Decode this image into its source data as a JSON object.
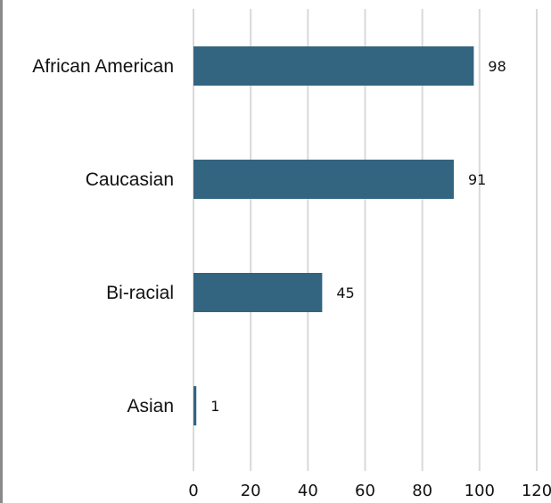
{
  "chart_data": {
    "type": "bar",
    "orientation": "horizontal",
    "categories": [
      "African American",
      "Caucasian",
      "Bi-racial",
      "Asian"
    ],
    "values": [
      98,
      91,
      45,
      1
    ],
    "data_labels": [
      "98",
      "91",
      "45",
      "1"
    ],
    "xlim": [
      0,
      120
    ],
    "x_ticks": [
      0,
      20,
      40,
      60,
      80,
      100,
      120
    ],
    "x_tick_labels": [
      "0",
      "20",
      "40",
      "60",
      "80",
      "100",
      "120"
    ],
    "grid": true,
    "bar_color": "#336580",
    "grid_color": "#d9d9d9"
  }
}
